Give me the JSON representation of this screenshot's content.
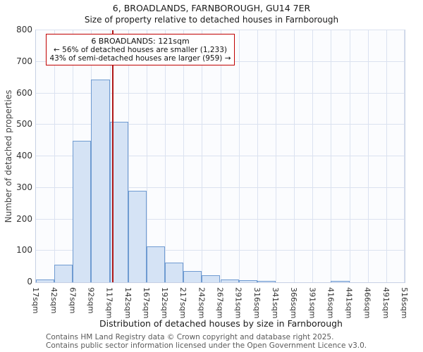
{
  "annotation": {
    "line1": "6 BROADLANDS: 121sqm",
    "line2": "← 56% of detached houses are smaller (1,233)",
    "line3": "43% of semi-detached houses are larger (959) →"
  },
  "footer": {
    "line1": "Contains HM Land Registry data © Crown copyright and database right 2025.",
    "line2": "Contains public sector information licensed under the Open Government Licence v3.0."
  },
  "chart_data": {
    "type": "bar",
    "title": "6, BROADLANDS, FARNBOROUGH, GU14 7ER",
    "subtitle": "Size of property relative to detached houses in Farnborough",
    "xlabel": "Distribution of detached houses by size in Farnborough",
    "ylabel": "Number of detached properties",
    "x_tick_labels": [
      "17sqm",
      "42sqm",
      "67sqm",
      "92sqm",
      "117sqm",
      "142sqm",
      "167sqm",
      "192sqm",
      "217sqm",
      "242sqm",
      "267sqm",
      "291sqm",
      "316sqm",
      "341sqm",
      "366sqm",
      "391sqm",
      "416sqm",
      "441sqm",
      "466sqm",
      "491sqm",
      "516sqm"
    ],
    "values": [
      10,
      55,
      450,
      643,
      510,
      290,
      115,
      63,
      35,
      22,
      10,
      6,
      5,
      0,
      0,
      0,
      4,
      0,
      0,
      0
    ],
    "ylim": [
      0,
      800
    ],
    "y_ticks": [
      0,
      100,
      200,
      300,
      400,
      500,
      600,
      700,
      800
    ],
    "bin_start_sqm": 17,
    "bin_size_sqm": 25,
    "grid": true,
    "legend": "none",
    "marker": {
      "value_sqm": 121,
      "color": "#b01818"
    },
    "colors": {
      "bar_fill": "#d5e3f5",
      "bar_border": "#6f9bd1",
      "grid": "#dbe2f0",
      "annotation_border": "#c00000"
    }
  }
}
